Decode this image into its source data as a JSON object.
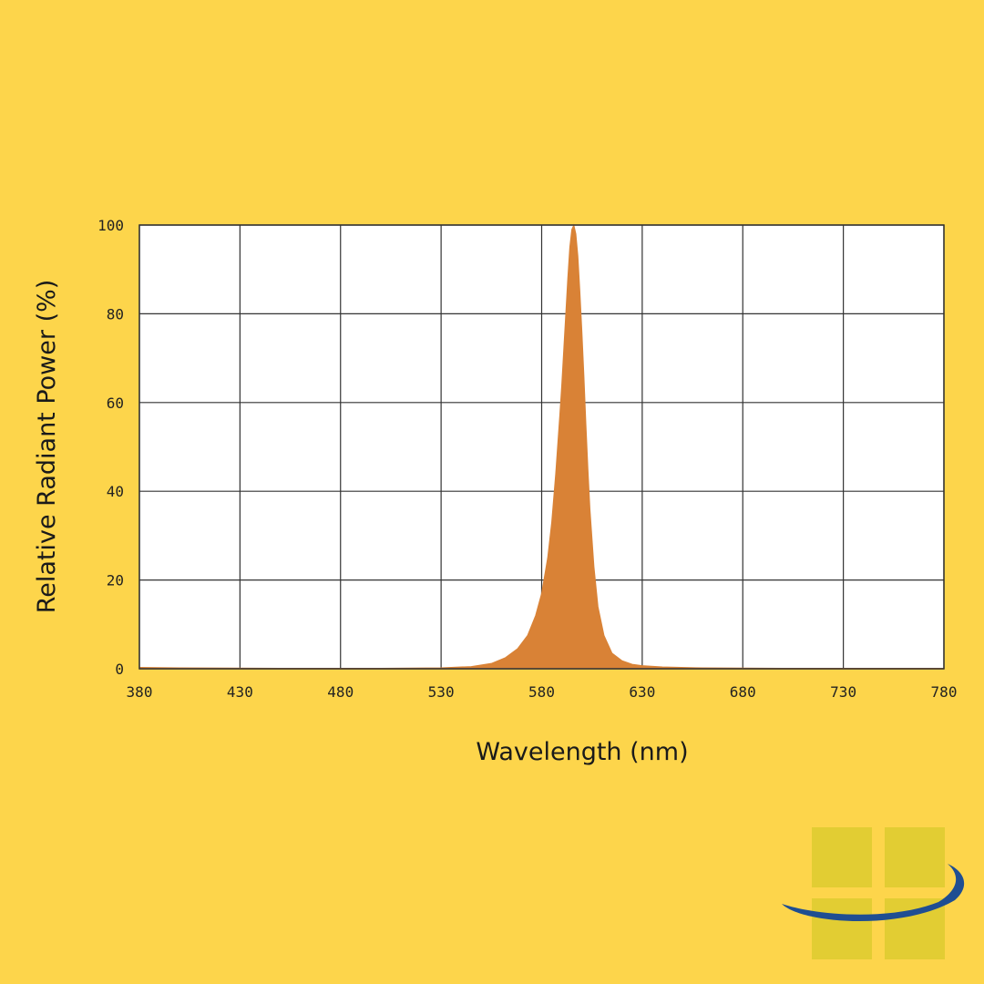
{
  "colors": {
    "background": "#FDD54B",
    "plot_background": "#FFFFFF",
    "grid": "#333333",
    "fill": "#D98236",
    "logo_square": "#E2CD33",
    "logo_swoosh": "#1F4E92"
  },
  "logo": {
    "icon": "window-swoosh-logo"
  },
  "chart_data": {
    "type": "area",
    "title": "",
    "xlabel": "Wavelength (nm)",
    "ylabel": "Relative Radiant Power (%)",
    "xlim": [
      380,
      780
    ],
    "ylim": [
      0,
      100
    ],
    "xticks": [
      "380",
      "430",
      "480",
      "530",
      "580",
      "630",
      "680",
      "730",
      "780"
    ],
    "yticks": [
      "0",
      "20",
      "40",
      "60",
      "80",
      "100"
    ],
    "grid": true,
    "legend": "none",
    "series": [
      {
        "x": [
          380,
          400,
          450,
          500,
          530,
          545,
          555,
          562,
          568,
          573,
          577,
          580,
          583,
          585,
          587,
          589,
          590,
          591,
          592,
          593,
          594,
          595,
          596,
          597,
          598,
          599,
          600,
          601,
          602,
          603,
          604,
          606,
          608,
          611,
          615,
          620,
          625,
          630,
          640,
          660,
          700,
          780
        ],
        "y": [
          0.3,
          0.2,
          0.1,
          0.1,
          0.2,
          0.5,
          1.2,
          2.5,
          4.5,
          7.5,
          12,
          17,
          25,
          33,
          44,
          57,
          64,
          72,
          80,
          88,
          95,
          99,
          100,
          98,
          93,
          85,
          76,
          66,
          55,
          45,
          36,
          23,
          14,
          7.5,
          3.5,
          1.8,
          1.0,
          0.7,
          0.4,
          0.2,
          0.1,
          0.1
        ]
      }
    ]
  }
}
